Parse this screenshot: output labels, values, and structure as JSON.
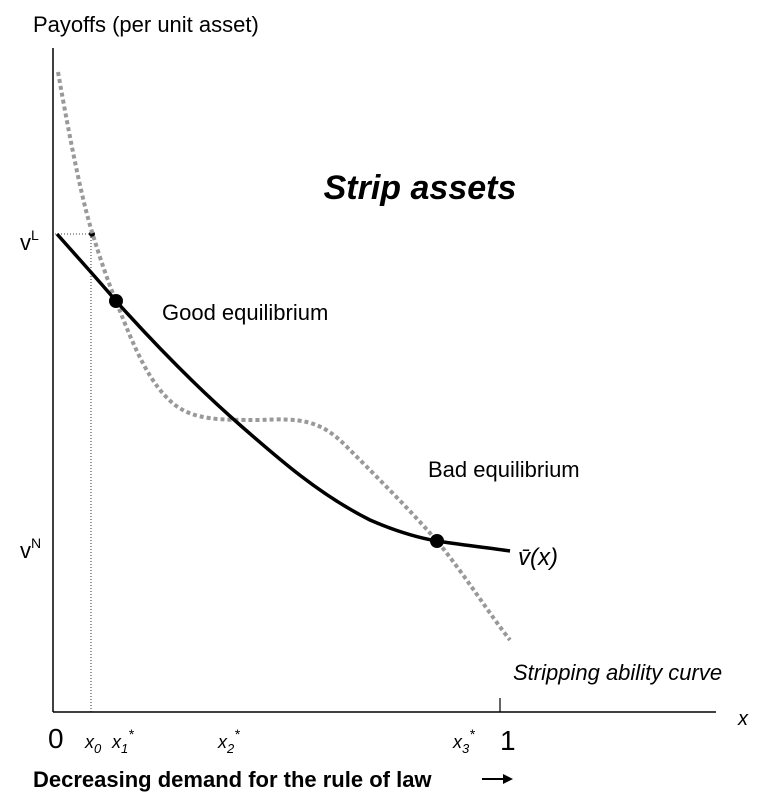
{
  "axis_title": "Payoffs (per unit asset)",
  "region_label": "Strip assets",
  "y_labels": {
    "v_L": {
      "base": "v",
      "sup": "L"
    },
    "v_N": {
      "base": "v",
      "sup": "N"
    }
  },
  "annotations": {
    "good": "Good equilibrium",
    "bad": "Bad equilibrium",
    "vbar": "v̄(x)",
    "stripping": "Stripping ability curve"
  },
  "x_labels": {
    "zero": "0",
    "x0": {
      "base": "x",
      "sub": "0"
    },
    "x1": {
      "base": "x",
      "sub": "1",
      "sup": "*"
    },
    "x2": {
      "base": "x",
      "sub": "2",
      "sup": "*"
    },
    "x3": {
      "base": "x",
      "sub": "3",
      "sup": "*"
    },
    "one": "1",
    "x_axis": "x"
  },
  "caption": "Decreasing demand for  the rule of law"
}
